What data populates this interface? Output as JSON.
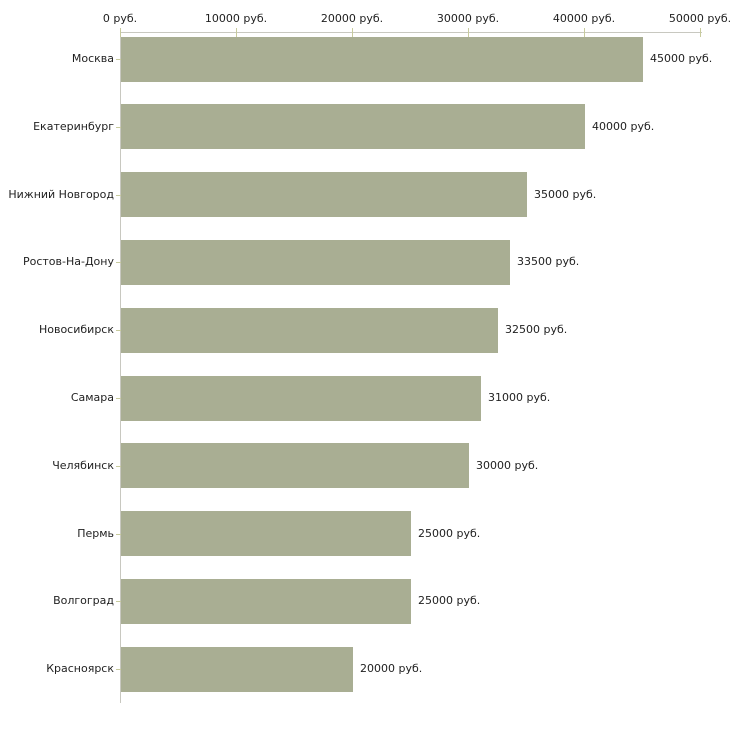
{
  "chart_data": {
    "type": "bar",
    "orientation": "horizontal",
    "title": "",
    "xlabel": "",
    "ylabel": "",
    "unit": "руб.",
    "categories": [
      "Москва",
      "Екатеринбург",
      "Нижний Новгород",
      "Ростов-На-Дону",
      "Новосибирск",
      "Самара",
      "Челябинск",
      "Пермь",
      "Волгоград",
      "Красноярск"
    ],
    "values": [
      45000,
      40000,
      35000,
      33500,
      32500,
      31000,
      30000,
      25000,
      25000,
      20000
    ],
    "value_labels": [
      "45000 руб.",
      "40000 руб.",
      "35000 руб.",
      "33500 руб.",
      "32500 руб.",
      "31000 руб.",
      "30000 руб.",
      "25000 руб.",
      "25000 руб.",
      "20000 руб."
    ],
    "x_axis": {
      "position": "top",
      "range": [
        0,
        50000
      ],
      "ticks": [
        0,
        10000,
        20000,
        30000,
        40000,
        50000
      ],
      "tick_labels": [
        "0 руб.",
        "10000 руб.",
        "20000 руб.",
        "30000 руб.",
        "40000 руб.",
        "50000 руб."
      ]
    },
    "grid": false,
    "legend": false,
    "colors": {
      "bar_fill": "#a9ae93",
      "axis_line": "#c8c8c0",
      "tick_mark": "#c8cb9d",
      "text": "#1f1f1f",
      "background": "#ffffff"
    }
  }
}
